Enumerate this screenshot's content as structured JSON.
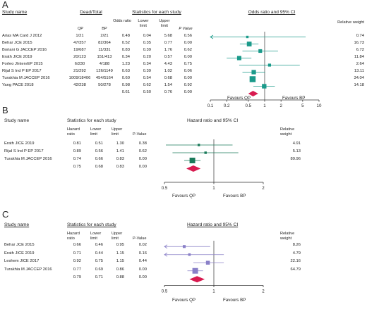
{
  "panel_a": {
    "letter": "A",
    "headers": {
      "study_name": "Study name",
      "dead_total": "Dead/Total",
      "stats": "Statistics for each study",
      "ci": "Odds ratio and 95% CI",
      "weight": "Relative weight"
    },
    "subheaders": {
      "qp": "QP",
      "bp": "BP",
      "effect": "Odds ratio",
      "lower": "Lower limit",
      "upper": "Upper limit",
      "p": "P Value"
    },
    "rows": [
      {
        "study": "Arias MA Card J 2012",
        "qp": "1/21",
        "bp": "2/21",
        "effect": "0.48",
        "lower": "0.04",
        "upper": "5.68",
        "p": "0.56",
        "weight": "0.74"
      },
      {
        "study": "Behar JCE 2015",
        "qp": "47/357",
        "bp": "82/364",
        "effect": "0.52",
        "lower": "0.35",
        "upper": "0.77",
        "p": "0.00",
        "weight": "16.73"
      },
      {
        "study": "Boriani G JACCEP 2016",
        "qp": "19/687",
        "bp": "11/331",
        "effect": "0.83",
        "lower": "0.39",
        "upper": "1.76",
        "p": "0.62",
        "weight": "6.72"
      },
      {
        "study": "Erath JICE 2019",
        "qp": "20/123",
        "bp": "151/413",
        "effect": "0.34",
        "lower": "0.20",
        "upper": "0.57",
        "p": "0.00",
        "weight": "11.84"
      },
      {
        "study": "Forleo JIntervEP 2015",
        "qp": "6/230",
        "bp": "4/188",
        "effect": "1.23",
        "lower": "0.34",
        "upper": "4.43",
        "p": "0.75",
        "weight": "2.64"
      },
      {
        "study": "Rijal S Ind P EP 2017",
        "qp": "21/292",
        "bp": "126/1149",
        "effect": "0.63",
        "lower": "0.39",
        "upper": "1.02",
        "p": "0.06",
        "weight": "13.11"
      },
      {
        "study": "Turakhia M JACCEP 2016",
        "qp": "1009/18406",
        "bp": "454/5164",
        "effect": "0.60",
        "lower": "0.54",
        "upper": "0.68",
        "p": "0.00",
        "weight": "34.04"
      },
      {
        "study": "Yang PACE 2018",
        "qp": "42/238",
        "bp": "50/278",
        "effect": "0.98",
        "lower": "0.62",
        "upper": "1.54",
        "p": "0.92",
        "weight": "14.18"
      }
    ],
    "summary": {
      "effect": "0.61",
      "lower": "0.50",
      "upper": "0.76",
      "p": "0.00"
    },
    "axis_ticks": [
      "0.1",
      "0.2",
      "0.5",
      "1",
      "2",
      "5",
      "10"
    ],
    "favours_left": "Favours QP",
    "favours_right": "Favours BP"
  },
  "panel_b": {
    "letter": "B",
    "headers": {
      "study_name": "Study name",
      "stats": "Statistics for each study",
      "ci": "Hazard ratio and 95% CI",
      "weight": "Relative weight"
    },
    "subheaders": {
      "effect": "Hazard ratio",
      "lower": "Lower limit",
      "upper": "Upper limit",
      "p": "P-Value"
    },
    "rows": [
      {
        "study": "Erath JICE 2019",
        "effect": "0.81",
        "lower": "0.51",
        "upper": "1.30",
        "p": "0.38",
        "weight": "4.91"
      },
      {
        "study": "Rijal S Ind P EP 2017",
        "effect": "0.89",
        "lower": "0.56",
        "upper": "1.41",
        "p": "0.62",
        "weight": "5.13"
      },
      {
        "study": "Turakhia M JACCEP 2016",
        "effect": "0.74",
        "lower": "0.66",
        "upper": "0.83",
        "p": "0.00",
        "weight": "89.96"
      }
    ],
    "summary": {
      "effect": "0.75",
      "lower": "0.68",
      "upper": "0.83",
      "p": "0.00"
    },
    "axis_ticks": [
      "0.5",
      "1",
      "2"
    ],
    "favours_left": "Favours QP",
    "favours_right": "Favours BP"
  },
  "panel_c": {
    "letter": "C",
    "headers": {
      "study_name": "Study name",
      "stats": "Statistics for each study",
      "ci": "Hazard ratio and 95% CI",
      "weight": "Relative weight"
    },
    "subheaders": {
      "effect": "Hazard ratio",
      "lower": "Lower limit",
      "upper": "Upper limit",
      "p": "P-Value"
    },
    "rows": [
      {
        "study": "Behar JCE 2015",
        "effect": "0.66",
        "lower": "0.46",
        "upper": "0.95",
        "p": "0.02",
        "weight": "8.26"
      },
      {
        "study": "Erath JICE 2019",
        "effect": "0.71",
        "lower": "0.44",
        "upper": "1.15",
        "p": "0.16",
        "weight": "4.79"
      },
      {
        "study": "Leshem JICE 2017",
        "effect": "0.92",
        "lower": "0.75",
        "upper": "1.15",
        "p": "0.44",
        "weight": "22.16"
      },
      {
        "study": "Turakhia M JACCEP 2016",
        "effect": "0.77",
        "lower": "0.69",
        "upper": "0.86",
        "p": "0.00",
        "weight": "64.79"
      }
    ],
    "summary": {
      "effect": "0.79",
      "lower": "0.71",
      "upper": "0.88",
      "p": "0.00"
    },
    "axis_ticks": [
      "0.5",
      "1",
      "2"
    ],
    "favours_left": "Favours QP",
    "favours_right": "Favours BP"
  },
  "colors": {
    "panel_a_marker": "#1a9a8a",
    "panel_b_marker": "#1a7a5a",
    "panel_c_marker": "#8a80c8",
    "summary_diamond": "#d81b50",
    "line": "#333333"
  },
  "chart_data": [
    {
      "type": "forest",
      "title": "Odds ratio and 95% CI",
      "scale": "log",
      "xlim": [
        0.1,
        10
      ],
      "categories": [
        "Arias MA Card J 2012",
        "Behar JCE 2015",
        "Boriani G JACCEP 2016",
        "Erath JICE 2019",
        "Forleo JIntervEP 2015",
        "Rijal S Ind P EP 2017",
        "Turakhia M JACCEP 2016",
        "Yang PACE 2018"
      ],
      "effect": [
        0.48,
        0.52,
        0.83,
        0.34,
        1.23,
        0.63,
        0.6,
        0.98
      ],
      "lower": [
        0.04,
        0.35,
        0.39,
        0.2,
        0.34,
        0.39,
        0.54,
        0.62
      ],
      "upper": [
        5.68,
        0.77,
        1.76,
        0.57,
        4.43,
        1.02,
        0.68,
        1.54
      ],
      "weight": [
        0.74,
        16.73,
        6.72,
        11.84,
        2.64,
        13.11,
        34.04,
        14.18
      ],
      "summary": {
        "effect": 0.61,
        "lower": 0.5,
        "upper": 0.76
      }
    },
    {
      "type": "forest",
      "title": "Hazard ratio and 95% CI",
      "scale": "log",
      "xlim": [
        0.5,
        2
      ],
      "categories": [
        "Erath JICE 2019",
        "Rijal S Ind P EP 2017",
        "Turakhia M JACCEP 2016"
      ],
      "effect": [
        0.81,
        0.89,
        0.74
      ],
      "lower": [
        0.51,
        0.56,
        0.66
      ],
      "upper": [
        1.3,
        1.41,
        0.83
      ],
      "weight": [
        4.91,
        5.13,
        89.96
      ],
      "summary": {
        "effect": 0.75,
        "lower": 0.68,
        "upper": 0.83
      }
    },
    {
      "type": "forest",
      "title": "Hazard ratio and 95% CI",
      "scale": "log",
      "xlim": [
        0.5,
        2
      ],
      "categories": [
        "Behar JCE 2015",
        "Erath JICE 2019",
        "Leshem JICE 2017",
        "Turakhia M JACCEP 2016"
      ],
      "effect": [
        0.66,
        0.71,
        0.92,
        0.77
      ],
      "lower": [
        0.46,
        0.44,
        0.75,
        0.69
      ],
      "upper": [
        0.95,
        1.15,
        1.15,
        0.86
      ],
      "weight": [
        8.26,
        4.79,
        22.16,
        64.79
      ],
      "summary": {
        "effect": 0.79,
        "lower": 0.71,
        "upper": 0.88
      }
    }
  ]
}
